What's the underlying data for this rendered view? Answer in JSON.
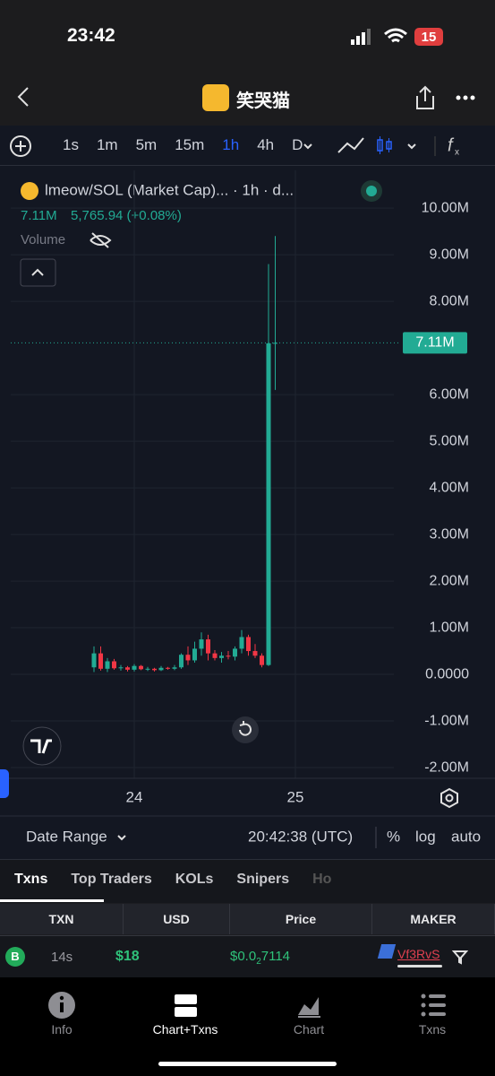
{
  "status_bar": {
    "time": "23:42",
    "battery": "15"
  },
  "nav": {
    "title": "笑哭猫"
  },
  "toolbar": {
    "timeframes": [
      "1s",
      "1m",
      "5m",
      "15m",
      "1h",
      "4h",
      "D"
    ],
    "selected": "1h"
  },
  "chart_data": {
    "type": "candlestick",
    "title": "lmeow/SOL (Market Cap)... · 1h · d...",
    "last_text": "7.11M",
    "change_text": "5,765.94 (+0.08%)",
    "volume_label": "Volume",
    "up_color": "#22ab94",
    "down_color": "#f23645",
    "categories": [
      null,
      null,
      null,
      null,
      null,
      null,
      "24",
      null,
      null,
      null,
      null,
      null,
      null,
      null,
      null,
      null,
      null,
      null,
      null,
      null,
      null,
      null,
      null,
      null,
      null,
      null,
      null,
      null,
      null,
      null,
      "25",
      null,
      null,
      null,
      null,
      null,
      null,
      null,
      null,
      null
    ],
    "open": [
      150000,
      450000,
      120000,
      280000,
      130000,
      150000,
      100000,
      180000,
      110000,
      120000,
      90000,
      140000,
      120000,
      150000,
      420000,
      300000,
      550000,
      750000,
      450000,
      350000,
      400000,
      380000,
      550000,
      800000,
      500000,
      400000,
      200000,
      7100000,
      null,
      null,
      null,
      null,
      null,
      null,
      null,
      null,
      null,
      null,
      null,
      null
    ],
    "high": [
      600000,
      600000,
      350000,
      330000,
      200000,
      180000,
      220000,
      200000,
      160000,
      140000,
      180000,
      160000,
      200000,
      450000,
      600000,
      700000,
      900000,
      850000,
      520000,
      480000,
      500000,
      600000,
      950000,
      850000,
      650000,
      450000,
      8800000,
      9400000,
      null,
      null,
      null,
      null,
      null,
      null,
      null,
      null,
      null,
      null,
      null,
      null
    ],
    "low": [
      50000,
      80000,
      50000,
      100000,
      80000,
      60000,
      60000,
      90000,
      70000,
      60000,
      70000,
      100000,
      90000,
      120000,
      200000,
      250000,
      400000,
      300000,
      300000,
      250000,
      320000,
      300000,
      450000,
      400000,
      350000,
      150000,
      180000,
      6100000,
      null,
      null,
      null,
      null,
      null,
      null,
      null,
      null,
      null,
      null,
      null,
      null
    ],
    "close": [
      450000,
      120000,
      280000,
      130000,
      150000,
      100000,
      180000,
      110000,
      120000,
      90000,
      140000,
      120000,
      150000,
      420000,
      300000,
      550000,
      750000,
      450000,
      350000,
      400000,
      380000,
      550000,
      800000,
      500000,
      400000,
      200000,
      7100000,
      7110000,
      null,
      null,
      null,
      null,
      null,
      null,
      null,
      null,
      null,
      null,
      null,
      null
    ],
    "ylim": [
      -2230000,
      10810000
    ],
    "yticks": [
      {
        "value": 10000000,
        "label": "10.00M"
      },
      {
        "value": 9000000,
        "label": "9.00M"
      },
      {
        "value": 8000000,
        "label": "8.00M"
      },
      {
        "value": 6000000,
        "label": "6.00M"
      },
      {
        "value": 5000000,
        "label": "5.00M"
      },
      {
        "value": 4000000,
        "label": "4.00M"
      },
      {
        "value": 3000000,
        "label": "3.00M"
      },
      {
        "value": 2000000,
        "label": "2.00M"
      },
      {
        "value": 1000000,
        "label": "1.00M"
      },
      {
        "value": 0,
        "label": "0.0000"
      },
      {
        "value": -1000000,
        "label": "-1.00M"
      },
      {
        "value": -2000000,
        "label": "-2.00M"
      }
    ],
    "last_price": {
      "value": 7110000,
      "label": "7.11M"
    },
    "grid": true
  },
  "footer": {
    "date_range": "Date Range",
    "time": "20:42:38 (UTC)",
    "options": [
      "%",
      "log",
      "auto"
    ]
  },
  "tabs": {
    "items": [
      "Txns",
      "Top Traders",
      "KOLs",
      "Snipers",
      "Ho"
    ]
  },
  "table": {
    "columns": [
      "TXN",
      "USD",
      "Price",
      "MAKER"
    ],
    "rows": [
      {
        "side": "B",
        "age": "14s",
        "usd": "$18",
        "price_prefix": "$0.0",
        "price_zeros": "2",
        "price_digits": "7114",
        "maker": "Vf3RvS"
      }
    ]
  },
  "bottom_nav": {
    "items": [
      "Info",
      "Chart+Txns",
      "Chart",
      "Txns"
    ],
    "selected": "Chart+Txns"
  }
}
